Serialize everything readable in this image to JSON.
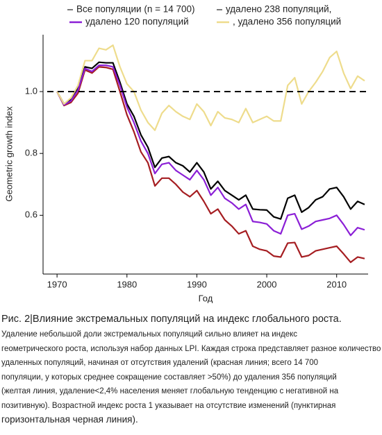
{
  "chart_data": {
    "type": "line",
    "ylabel": "Geometric growth index",
    "xlabel": "Год",
    "x": [
      1970,
      1971,
      1972,
      1973,
      1974,
      1975,
      1976,
      1977,
      1978,
      1979,
      1980,
      1981,
      1982,
      1983,
      1984,
      1985,
      1986,
      1987,
      1988,
      1989,
      1990,
      1991,
      1992,
      1993,
      1994,
      1995,
      1996,
      1997,
      1998,
      1999,
      2000,
      2001,
      2002,
      2003,
      2004,
      2005,
      2006,
      2007,
      2008,
      2009,
      2010,
      2011,
      2012,
      2013,
      2014
    ],
    "series": [
      {
        "name": "Все популяции (n = 14 700)",
        "color": "#a51d21",
        "values": [
          1.0,
          0.955,
          0.965,
          0.995,
          1.07,
          1.06,
          1.08,
          1.078,
          1.072,
          1.0,
          0.925,
          0.87,
          0.805,
          0.77,
          0.695,
          0.72,
          0.72,
          0.7,
          0.675,
          0.66,
          0.68,
          0.645,
          0.605,
          0.62,
          0.585,
          0.565,
          0.54,
          0.55,
          0.5,
          0.49,
          0.485,
          0.468,
          0.465,
          0.51,
          0.512,
          0.465,
          0.47,
          0.485,
          0.49,
          0.495,
          0.5,
          0.475,
          0.448,
          0.465,
          0.46
        ]
      },
      {
        "name": "удалено 238 популяций,",
        "color": "#000000",
        "values": [
          1.0,
          0.96,
          0.975,
          1.01,
          1.08,
          1.075,
          1.095,
          1.093,
          1.093,
          1.03,
          0.96,
          0.92,
          0.86,
          0.82,
          0.755,
          0.785,
          0.79,
          0.77,
          0.76,
          0.74,
          0.77,
          0.74,
          0.685,
          0.71,
          0.68,
          0.665,
          0.65,
          0.665,
          0.62,
          0.618,
          0.617,
          0.595,
          0.588,
          0.655,
          0.665,
          0.61,
          0.625,
          0.65,
          0.66,
          0.685,
          0.69,
          0.66,
          0.62,
          0.645,
          0.635
        ]
      },
      {
        "name": "удалено 120 популяций",
        "color": "#8b1fd6",
        "values": [
          1.0,
          0.957,
          0.97,
          1.005,
          1.075,
          1.065,
          1.085,
          1.085,
          1.08,
          1.02,
          0.95,
          0.9,
          0.84,
          0.8,
          0.735,
          0.765,
          0.77,
          0.745,
          0.73,
          0.715,
          0.745,
          0.715,
          0.665,
          0.69,
          0.655,
          0.64,
          0.62,
          0.635,
          0.58,
          0.577,
          0.572,
          0.55,
          0.54,
          0.6,
          0.605,
          0.555,
          0.565,
          0.58,
          0.585,
          0.59,
          0.6,
          0.57,
          0.535,
          0.56,
          0.553
        ]
      },
      {
        "name": ", удалено 356 популяций",
        "color": "#eedc8c",
        "values": [
          1.0,
          0.96,
          0.98,
          1.02,
          1.1,
          1.1,
          1.14,
          1.135,
          1.15,
          1.08,
          1.025,
          1.0,
          0.94,
          0.9,
          0.875,
          0.93,
          0.955,
          0.935,
          0.92,
          0.91,
          0.96,
          0.935,
          0.89,
          0.935,
          0.915,
          0.91,
          0.9,
          0.945,
          0.9,
          0.91,
          0.92,
          0.905,
          0.905,
          1.02,
          1.045,
          0.96,
          1.0,
          1.03,
          1.065,
          1.11,
          1.13,
          1.06,
          1.01,
          1.05,
          1.035
        ]
      }
    ],
    "reference_line": 1.0,
    "xlim": [
      1968,
      2014.5
    ],
    "xticks": [
      1970,
      1980,
      1990,
      2000,
      2010
    ],
    "ylim": [
      0.41,
      1.184
    ],
    "yticks": [
      0.6,
      0.8,
      {
        "value": 1,
        "label": "1.0"
      }
    ]
  },
  "caption": {
    "title": "Рис. 2|Влияние экстремальных популяций на индекс глобального роста.",
    "lines": [
      "Удаление небольшой доли экстремальных популяций сильно влияет на индекс",
      "геометрического роста, используя набор данных LPI. Каждая строка представляет разное количество",
      "удаленных популяций, начиная от отсутствия удалений (красная линия; всего 14 700",
      "популяции, у которых среднее сокращение составляет >50%) до удаления 356 популяций",
      "(желтая линия, удаление<2,4% населения меняет глобальную тенденцию с негативной на",
      "позитивную). Возрастной индекс роста 1 указывает на отсутствие изменений (пунктирная",
      "горизонтальная черная линия)."
    ]
  }
}
